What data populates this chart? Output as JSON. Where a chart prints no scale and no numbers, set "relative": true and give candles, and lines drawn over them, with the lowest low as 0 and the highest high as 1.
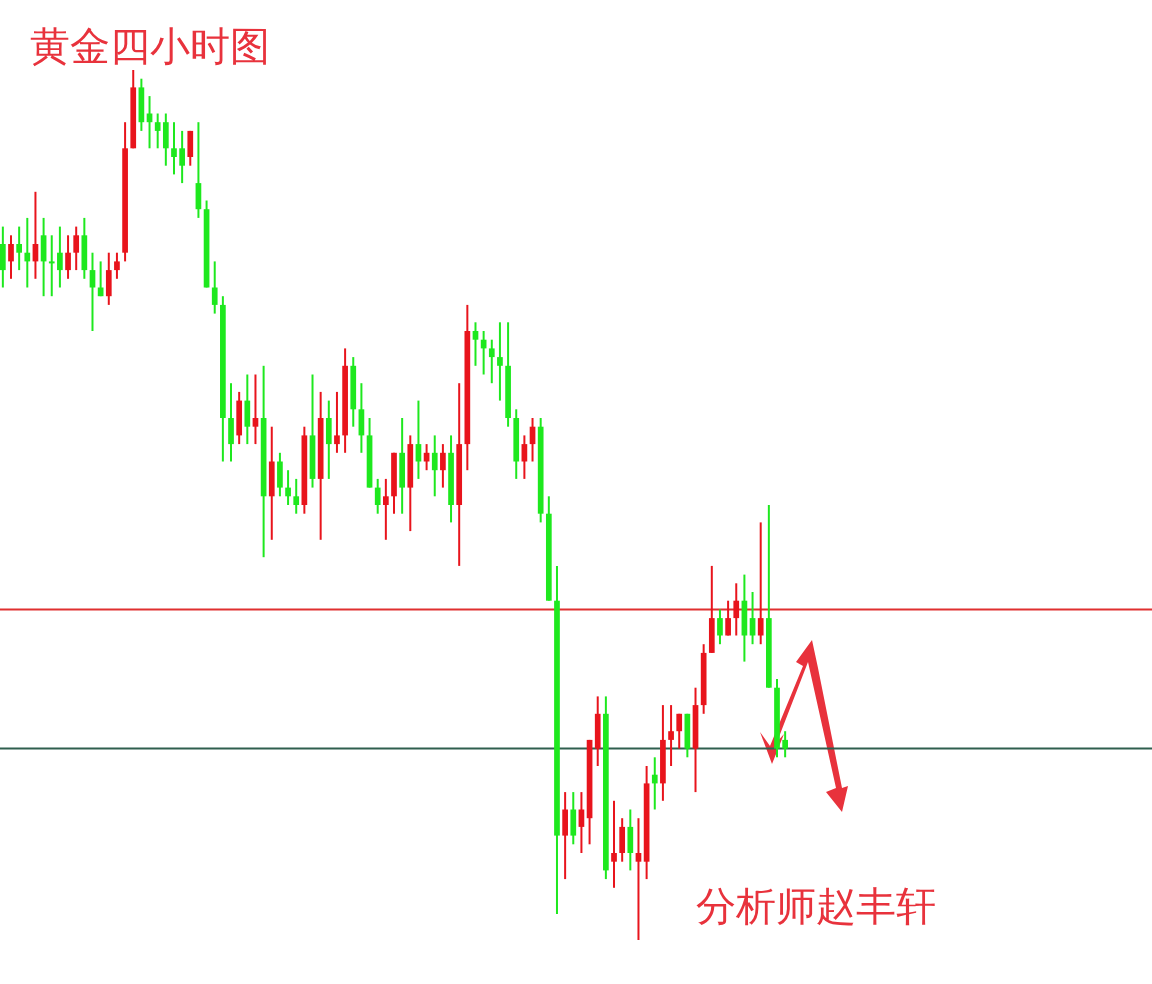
{
  "chart_data": {
    "type": "candlestick",
    "title": "黄金四小时图",
    "relative": true,
    "annotations": [
      "分析师赵丰轩"
    ],
    "ref_lines": [
      {
        "axis": "y",
        "value": 0.38,
        "color": "#e03030"
      },
      {
        "axis": "y",
        "value": 0.22,
        "color": "#2f5f4f"
      }
    ],
    "categories": [
      null,
      null,
      null,
      null,
      null,
      null,
      null,
      null,
      null,
      null,
      null,
      null,
      null,
      null,
      null,
      null,
      null,
      null,
      null,
      null,
      null,
      null,
      null,
      null,
      null,
      null,
      null,
      null,
      null,
      null,
      null,
      null,
      null,
      null,
      null,
      null,
      null,
      null,
      null,
      null,
      null,
      null,
      null,
      null,
      null,
      null,
      null,
      null,
      null,
      null,
      null,
      null,
      null,
      null,
      null,
      null,
      null,
      null,
      null,
      null,
      null,
      null,
      null,
      null,
      null,
      null,
      null,
      null,
      null,
      null,
      null,
      null,
      null,
      null,
      null,
      null,
      null,
      null,
      null,
      null,
      null,
      null,
      null,
      null,
      null,
      null,
      null,
      null,
      null,
      null,
      null,
      null,
      null,
      null,
      null,
      null,
      null
    ],
    "ohlc": [
      [
        0.8,
        0.82,
        0.75,
        0.77
      ],
      [
        0.78,
        0.81,
        0.76,
        0.8
      ],
      [
        0.8,
        0.82,
        0.77,
        0.79
      ],
      [
        0.79,
        0.83,
        0.75,
        0.78
      ],
      [
        0.78,
        0.86,
        0.76,
        0.8
      ],
      [
        0.81,
        0.83,
        0.74,
        0.78
      ],
      [
        0.78,
        0.81,
        0.74,
        0.78
      ],
      [
        0.79,
        0.82,
        0.75,
        0.77
      ],
      [
        0.77,
        0.81,
        0.76,
        0.79
      ],
      [
        0.79,
        0.82,
        0.77,
        0.81
      ],
      [
        0.81,
        0.83,
        0.76,
        0.77
      ],
      [
        0.77,
        0.79,
        0.7,
        0.75
      ],
      [
        0.75,
        0.78,
        0.74,
        0.74
      ],
      [
        0.74,
        0.79,
        0.73,
        0.77
      ],
      [
        0.77,
        0.79,
        0.76,
        0.78
      ],
      [
        0.79,
        0.94,
        0.78,
        0.91
      ],
      [
        0.91,
        1.0,
        0.91,
        0.98
      ],
      [
        0.98,
        0.99,
        0.93,
        0.94
      ],
      [
        0.95,
        0.97,
        0.91,
        0.94
      ],
      [
        0.94,
        0.95,
        0.91,
        0.93
      ],
      [
        0.94,
        0.95,
        0.89,
        0.91
      ],
      [
        0.91,
        0.94,
        0.88,
        0.9
      ],
      [
        0.91,
        0.93,
        0.87,
        0.89
      ],
      [
        0.9,
        0.93,
        0.89,
        0.93
      ],
      [
        0.87,
        0.94,
        0.83,
        0.84
      ],
      [
        0.84,
        0.85,
        0.75,
        0.75
      ],
      [
        0.75,
        0.78,
        0.72,
        0.73
      ],
      [
        0.73,
        0.74,
        0.55,
        0.6
      ],
      [
        0.6,
        0.64,
        0.55,
        0.57
      ],
      [
        0.58,
        0.63,
        0.57,
        0.62
      ],
      [
        0.62,
        0.65,
        0.57,
        0.59
      ],
      [
        0.59,
        0.65,
        0.57,
        0.6
      ],
      [
        0.6,
        0.66,
        0.44,
        0.51
      ],
      [
        0.51,
        0.59,
        0.46,
        0.55
      ],
      [
        0.55,
        0.56,
        0.51,
        0.52
      ],
      [
        0.52,
        0.54,
        0.5,
        0.51
      ],
      [
        0.51,
        0.53,
        0.49,
        0.5
      ],
      [
        0.5,
        0.59,
        0.49,
        0.58
      ],
      [
        0.58,
        0.65,
        0.52,
        0.53
      ],
      [
        0.53,
        0.63,
        0.46,
        0.6
      ],
      [
        0.6,
        0.62,
        0.53,
        0.57
      ],
      [
        0.57,
        0.63,
        0.56,
        0.58
      ],
      [
        0.58,
        0.68,
        0.56,
        0.66
      ],
      [
        0.66,
        0.67,
        0.59,
        0.61
      ],
      [
        0.61,
        0.64,
        0.56,
        0.58
      ],
      [
        0.58,
        0.6,
        0.52,
        0.52
      ],
      [
        0.52,
        0.53,
        0.49,
        0.5
      ],
      [
        0.5,
        0.53,
        0.46,
        0.51
      ],
      [
        0.51,
        0.56,
        0.49,
        0.56
      ],
      [
        0.56,
        0.6,
        0.49,
        0.52
      ],
      [
        0.52,
        0.58,
        0.47,
        0.57
      ],
      [
        0.57,
        0.62,
        0.53,
        0.55
      ],
      [
        0.55,
        0.57,
        0.54,
        0.56
      ],
      [
        0.56,
        0.58,
        0.51,
        0.54
      ],
      [
        0.54,
        0.57,
        0.52,
        0.56
      ],
      [
        0.56,
        0.58,
        0.48,
        0.5
      ],
      [
        0.5,
        0.64,
        0.43,
        0.57
      ],
      [
        0.57,
        0.73,
        0.54,
        0.7
      ],
      [
        0.7,
        0.71,
        0.66,
        0.69
      ],
      [
        0.69,
        0.7,
        0.65,
        0.68
      ],
      [
        0.68,
        0.69,
        0.64,
        0.67
      ],
      [
        0.67,
        0.71,
        0.62,
        0.66
      ],
      [
        0.66,
        0.71,
        0.59,
        0.6
      ],
      [
        0.6,
        0.61,
        0.53,
        0.55
      ],
      [
        0.55,
        0.58,
        0.53,
        0.57
      ],
      [
        0.57,
        0.6,
        0.55,
        0.59
      ],
      [
        0.59,
        0.6,
        0.48,
        0.49
      ],
      [
        0.49,
        0.51,
        0.39,
        0.39
      ],
      [
        0.39,
        0.43,
        0.03,
        0.12
      ],
      [
        0.12,
        0.17,
        0.07,
        0.15
      ],
      [
        0.15,
        0.17,
        0.11,
        0.12
      ],
      [
        0.13,
        0.17,
        0.1,
        0.15
      ],
      [
        0.14,
        0.23,
        0.11,
        0.23
      ],
      [
        0.22,
        0.28,
        0.2,
        0.26
      ],
      [
        0.26,
        0.28,
        0.07,
        0.08
      ],
      [
        0.09,
        0.16,
        0.06,
        0.1
      ],
      [
        0.1,
        0.14,
        0.09,
        0.13
      ],
      [
        0.13,
        0.15,
        0.08,
        0.1
      ],
      [
        0.09,
        0.14,
        0.0,
        0.1
      ],
      [
        0.09,
        0.2,
        0.07,
        0.18
      ],
      [
        0.19,
        0.21,
        0.15,
        0.18
      ],
      [
        0.18,
        0.27,
        0.16,
        0.23
      ],
      [
        0.23,
        0.27,
        0.2,
        0.24
      ],
      [
        0.24,
        0.26,
        0.22,
        0.26
      ],
      [
        0.26,
        0.26,
        0.21,
        0.22
      ],
      [
        0.22,
        0.29,
        0.17,
        0.27
      ],
      [
        0.27,
        0.34,
        0.26,
        0.33
      ],
      [
        0.33,
        0.43,
        0.33,
        0.37
      ],
      [
        0.37,
        0.38,
        0.34,
        0.35
      ],
      [
        0.35,
        0.39,
        0.35,
        0.37
      ],
      [
        0.37,
        0.41,
        0.35,
        0.39
      ],
      [
        0.39,
        0.42,
        0.32,
        0.35
      ],
      [
        0.37,
        0.4,
        0.34,
        0.35
      ],
      [
        0.35,
        0.48,
        0.34,
        0.37
      ],
      [
        0.37,
        0.5,
        0.29,
        0.29
      ],
      [
        0.29,
        0.3,
        0.21,
        0.22
      ],
      [
        0.23,
        0.24,
        0.21,
        0.22
      ]
    ]
  }
}
